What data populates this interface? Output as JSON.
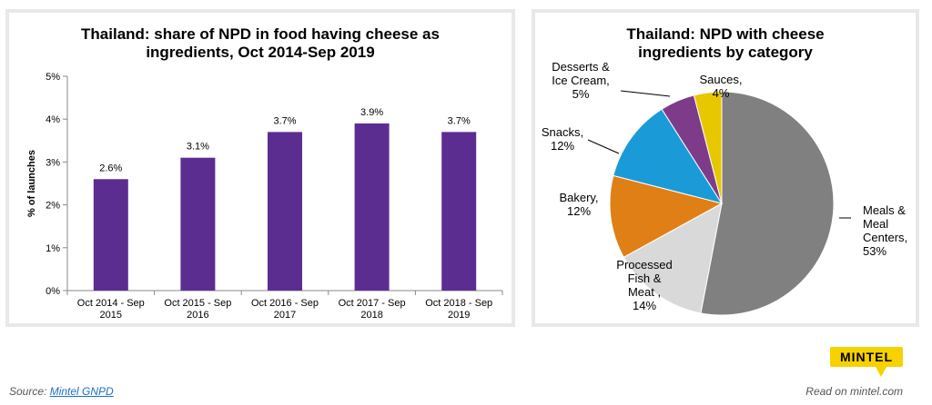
{
  "bar_chart": {
    "title": "Thailand: share of NPD in food having cheese as\ningredients, Oct 2014-Sep 2019"
  },
  "pie_chart": {
    "title": "Thailand: NPD with cheese\ningredients by category"
  },
  "footer": {
    "source_prefix": "Source:",
    "source_link": "Mintel GNPD",
    "read_on": "Read on mintel.com",
    "logo_text": "MINTEL"
  },
  "colors": {
    "bar": "#5c2d91",
    "meals": "#808080",
    "processed": "#d9d9d9",
    "bakery": "#e07f16",
    "snacks": "#1a9bd7",
    "desserts": "#7e3b8a",
    "sauces": "#e6c700",
    "logo": "#f7d100"
  },
  "chart_data": [
    {
      "type": "bar",
      "title": "Thailand: share of NPD in food having cheese as ingredients, Oct 2014-Sep 2019",
      "categories": [
        "Oct 2014 - Sep\n2015",
        "Oct 2015 - Sep\n2016",
        "Oct 2016 - Sep\n2017",
        "Oct 2017 - Sep\n2018",
        "Oct 2018 - Sep\n2019"
      ],
      "values": [
        2.6,
        3.1,
        3.7,
        3.9,
        3.7
      ],
      "data_labels": [
        "2.6%",
        "3.1%",
        "3.7%",
        "3.9%",
        "3.7%"
      ],
      "ylabel": "% of launches",
      "xlabel": "",
      "ylim": [
        0,
        5
      ],
      "yticks": [
        "0%",
        "1%",
        "2%",
        "3%",
        "4%",
        "5%"
      ],
      "grid": false,
      "legend": "none"
    },
    {
      "type": "pie",
      "title": "Thailand: NPD with cheese ingredients by category",
      "slices": [
        {
          "label": "Meals &\nMeal\nCenters,\n53%",
          "value": 53,
          "color_key": "meals"
        },
        {
          "label": "Processed\nFish &\nMeat ,\n14%",
          "value": 14,
          "color_key": "processed"
        },
        {
          "label": "Bakery,\n12%",
          "value": 12,
          "color_key": "bakery"
        },
        {
          "label": "Snacks,\n12%",
          "value": 12,
          "color_key": "snacks"
        },
        {
          "label": "Desserts &\nIce Cream,\n5%",
          "value": 5,
          "color_key": "desserts"
        },
        {
          "label": "Sauces,\n4%",
          "value": 4,
          "color_key": "sauces"
        }
      ],
      "legend": "none"
    }
  ]
}
